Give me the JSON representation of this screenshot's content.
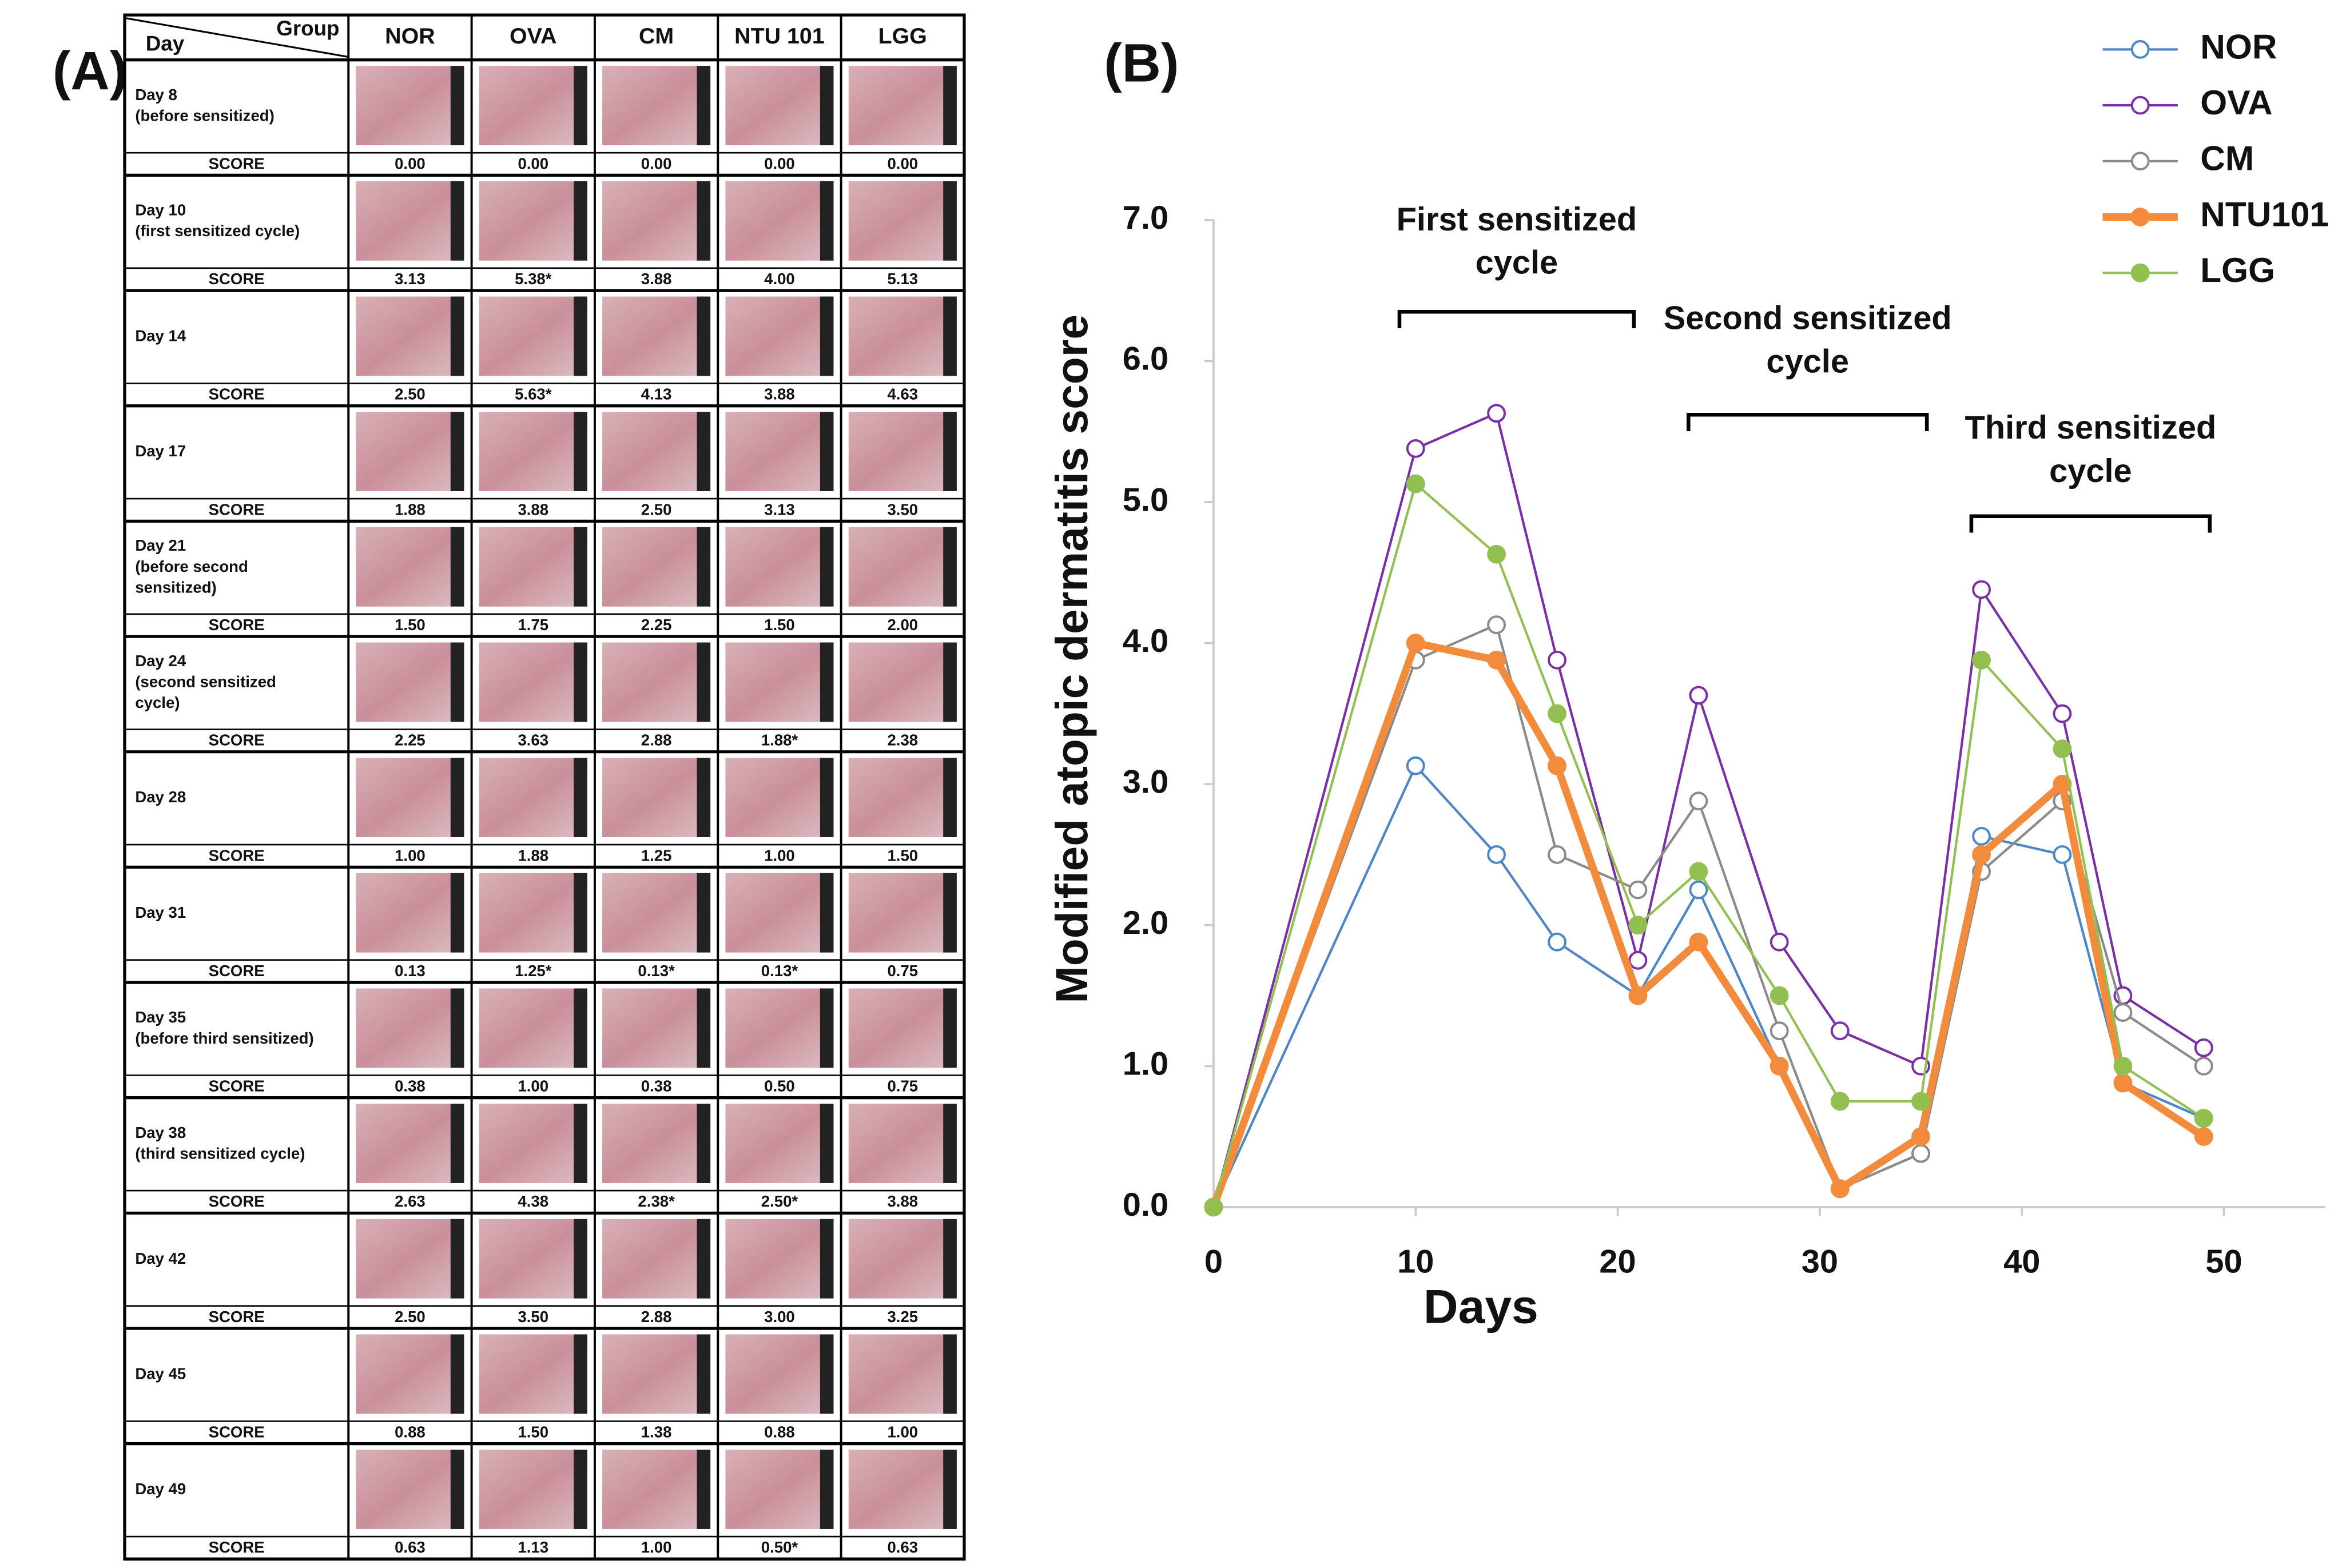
{
  "panel_a": {
    "label": "(A)",
    "header": {
      "day": "Day",
      "group": "Group",
      "groups": [
        "NOR",
        "OVA",
        "CM",
        "NTU 101",
        "LGG"
      ]
    },
    "score_label": "SCORE",
    "rows": [
      {
        "label_lines": [
          "Day 8",
          "(before sensitized)"
        ],
        "scores": [
          "0.00",
          "0.00",
          "0.00",
          "0.00",
          "0.00"
        ]
      },
      {
        "label_lines": [
          "Day 10",
          "(first sensitized cycle)"
        ],
        "scores": [
          "3.13",
          "5.38*",
          "3.88",
          "4.00",
          "5.13"
        ]
      },
      {
        "label_lines": [
          "Day 14"
        ],
        "scores": [
          "2.50",
          "5.63*",
          "4.13",
          "3.88",
          "4.63"
        ]
      },
      {
        "label_lines": [
          "Day 17"
        ],
        "scores": [
          "1.88",
          "3.88",
          "2.50",
          "3.13",
          "3.50"
        ]
      },
      {
        "label_lines": [
          "Day 21",
          "(before second",
          "sensitized)"
        ],
        "scores": [
          "1.50",
          "1.75",
          "2.25",
          "1.50",
          "2.00"
        ]
      },
      {
        "label_lines": [
          "Day 24",
          "(second sensitized",
          "cycle)"
        ],
        "scores": [
          "2.25",
          "3.63",
          "2.88",
          "1.88*",
          "2.38"
        ]
      },
      {
        "label_lines": [
          "Day 28"
        ],
        "scores": [
          "1.00",
          "1.88",
          "1.25",
          "1.00",
          "1.50"
        ]
      },
      {
        "label_lines": [
          "Day 31"
        ],
        "scores": [
          "0.13",
          "1.25*",
          "0.13*",
          "0.13*",
          "0.75"
        ]
      },
      {
        "label_lines": [
          "Day 35",
          "(before third sensitized)"
        ],
        "scores": [
          "0.38",
          "1.00",
          "0.38",
          "0.50",
          "0.75"
        ]
      },
      {
        "label_lines": [
          "Day 38",
          "(third sensitized cycle)"
        ],
        "scores": [
          "2.63",
          "4.38",
          "2.38*",
          "2.50*",
          "3.88"
        ]
      },
      {
        "label_lines": [
          "Day 42"
        ],
        "scores": [
          "2.50",
          "3.50",
          "2.88",
          "3.00",
          "3.25"
        ]
      },
      {
        "label_lines": [
          "Day 45"
        ],
        "scores": [
          "0.88",
          "1.50",
          "1.38",
          "0.88",
          "1.00"
        ]
      },
      {
        "label_lines": [
          "Day 49"
        ],
        "scores": [
          "0.63",
          "1.13",
          "1.00",
          "0.50*",
          "0.63"
        ]
      }
    ]
  },
  "panel_b": {
    "label": "(B)"
  },
  "chart_data": {
    "type": "line",
    "x_label": "Days",
    "y_label": "Modified atopic dermatitis score",
    "x": [
      0,
      10,
      14,
      17,
      21,
      24,
      28,
      31,
      35,
      38,
      42,
      45,
      49
    ],
    "xlim": [
      0,
      55
    ],
    "xticks": [
      0,
      10,
      20,
      30,
      40,
      50
    ],
    "ylim": [
      0,
      7
    ],
    "yticks": [
      {
        "value": 0,
        "label": "0.0"
      },
      {
        "value": 1,
        "label": "1.0"
      },
      {
        "value": 2,
        "label": "2.0"
      },
      {
        "value": 3,
        "label": "3.0"
      },
      {
        "value": 4,
        "label": "4.0"
      },
      {
        "value": 5,
        "label": "5.0"
      },
      {
        "value": 6,
        "label": "6.0"
      },
      {
        "value": 7,
        "label": "7.0"
      }
    ],
    "grid": false,
    "legend": "upper right",
    "annotations": [
      {
        "lines": [
          "First sensitized",
          "cycle"
        ]
      },
      {
        "lines": [
          "Second sensitized",
          "cycle"
        ]
      },
      {
        "lines": [
          "Third sensitized",
          "cycle"
        ]
      }
    ],
    "series": [
      {
        "name": "NOR",
        "color": "#4a86c8",
        "marker": "open",
        "line_width": 1.6,
        "values": [
          0,
          3.13,
          2.5,
          1.88,
          1.5,
          2.25,
          1.0,
          0.13,
          0.38,
          2.63,
          2.5,
          0.88,
          0.63
        ]
      },
      {
        "name": "OVA",
        "color": "#7a2ea8",
        "marker": "open",
        "line_width": 1.6,
        "values": [
          0,
          5.38,
          5.63,
          3.88,
          1.75,
          3.63,
          1.88,
          1.25,
          1.0,
          4.38,
          3.5,
          1.5,
          1.13
        ]
      },
      {
        "name": "CM",
        "color": "#8a8a8a",
        "marker": "open",
        "line_width": 1.6,
        "values": [
          0,
          3.88,
          4.13,
          2.5,
          2.25,
          2.88,
          1.25,
          0.13,
          0.38,
          2.38,
          2.88,
          1.38,
          1.0
        ]
      },
      {
        "name": "NTU101",
        "color": "#f28b3c",
        "marker": "filled",
        "line_width": 5,
        "values": [
          0,
          4.0,
          3.88,
          3.13,
          1.5,
          1.88,
          1.0,
          0.13,
          0.5,
          2.5,
          3.0,
          0.88,
          0.5
        ]
      },
      {
        "name": "LGG",
        "color": "#92c050",
        "marker": "filled",
        "line_width": 1.6,
        "values": [
          0,
          5.13,
          4.63,
          3.5,
          2.0,
          2.38,
          1.5,
          0.75,
          0.75,
          3.88,
          3.25,
          1.0,
          0.63
        ]
      }
    ]
  }
}
